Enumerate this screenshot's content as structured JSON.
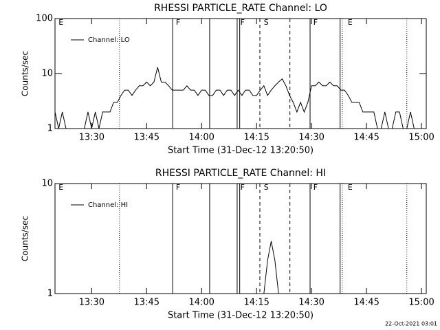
{
  "chart_data": [
    {
      "type": "line",
      "title": "RHESSI PARTICLE_RATE Channel: LO",
      "xlabel": "Start Time (31-Dec-12 13:20:50)",
      "ylabel": "Counts/sec",
      "log_y": true,
      "xlim": [
        800,
        901.3
      ],
      "ylim": [
        1,
        100
      ],
      "yticks": [
        1,
        10,
        100
      ],
      "xticks": [
        {
          "value": 810,
          "label": "13:30"
        },
        {
          "value": 825,
          "label": "13:45"
        },
        {
          "value": 840,
          "label": "14:00"
        },
        {
          "value": 855,
          "label": "14:15"
        },
        {
          "value": 870,
          "label": "14:30"
        },
        {
          "value": 885,
          "label": "14:45"
        },
        {
          "value": 900,
          "label": "15:00"
        }
      ],
      "markers": [
        {
          "x": 817.6,
          "style": "dotted"
        },
        {
          "x": 832.1,
          "style": "solid"
        },
        {
          "x": 842.2,
          "style": "solid"
        },
        {
          "x": 849.7,
          "style": "solid"
        },
        {
          "x": 850.4,
          "style": "solid"
        },
        {
          "x": 855.9,
          "style": "dashed"
        },
        {
          "x": 864.1,
          "style": "dashed"
        },
        {
          "x": 869.6,
          "style": "solid"
        },
        {
          "x": 877.8,
          "style": "solid"
        },
        {
          "x": 878.4,
          "style": "dotted"
        },
        {
          "x": 896.0,
          "style": "dotted"
        }
      ],
      "flags": [
        {
          "x": 800.8,
          "text": "E"
        },
        {
          "x": 832.8,
          "text": "F"
        },
        {
          "x": 850.4,
          "text": "F"
        },
        {
          "x": 856.8,
          "text": "S"
        },
        {
          "x": 870.3,
          "text": "F"
        },
        {
          "x": 879.7,
          "text": "E"
        }
      ],
      "x": [
        800,
        801,
        802,
        803,
        804,
        805,
        806,
        807,
        808,
        809,
        810,
        811,
        812,
        813,
        814,
        815,
        816,
        817,
        818,
        819,
        820,
        821,
        822,
        823,
        824,
        825,
        826,
        827,
        828,
        829,
        830,
        831,
        832,
        833,
        834,
        835,
        836,
        837,
        838,
        839,
        840,
        841,
        842,
        843,
        844,
        845,
        846,
        847,
        848,
        849,
        850,
        851,
        852,
        853,
        854,
        855,
        856,
        857,
        858,
        859,
        860,
        861,
        862,
        863,
        864,
        865,
        866,
        867,
        868,
        869,
        870,
        871,
        872,
        873,
        874,
        875,
        876,
        877,
        878,
        879,
        880,
        881,
        882,
        883,
        884,
        885,
        886,
        887,
        888,
        889,
        890,
        891,
        892,
        893,
        894,
        895,
        896,
        897,
        898,
        899,
        900
      ],
      "series": [
        {
          "name": "Channel: LO",
          "color": "#000000",
          "values": [
            2,
            1,
            2,
            1,
            1,
            1,
            1,
            1,
            1,
            2,
            1,
            2,
            1,
            2,
            2,
            2,
            3,
            3,
            4,
            5,
            5,
            4,
            5,
            6,
            6,
            7,
            6,
            7,
            13,
            7,
            7,
            6,
            5,
            5,
            5,
            5,
            6,
            5,
            5,
            4,
            5,
            5,
            4,
            4,
            5,
            5,
            4,
            5,
            5,
            4,
            5,
            4,
            5,
            5,
            4,
            4,
            5,
            6,
            4,
            5,
            6,
            7,
            8,
            6,
            4,
            3,
            2,
            3,
            2,
            3,
            6,
            6,
            7,
            6,
            6,
            7,
            6,
            6,
            5,
            5,
            4,
            3,
            3,
            3,
            2,
            2,
            2,
            2,
            1,
            1,
            2,
            1,
            1,
            2,
            2,
            1,
            1,
            2,
            1,
            1,
            1
          ]
        }
      ]
    },
    {
      "type": "line",
      "title": "RHESSI PARTICLE_RATE Channel: HI",
      "xlabel": "Start Time (31-Dec-12 13:20:50)",
      "ylabel": "Counts/sec",
      "log_y": true,
      "xlim": [
        800,
        901.3
      ],
      "ylim": [
        1,
        10
      ],
      "yticks": [
        1,
        10
      ],
      "xticks": [
        {
          "value": 810,
          "label": "13:30"
        },
        {
          "value": 825,
          "label": "13:45"
        },
        {
          "value": 840,
          "label": "14:00"
        },
        {
          "value": 855,
          "label": "14:15"
        },
        {
          "value": 870,
          "label": "14:30"
        },
        {
          "value": 885,
          "label": "14:45"
        },
        {
          "value": 900,
          "label": "15:00"
        }
      ],
      "markers": [
        {
          "x": 817.6,
          "style": "dotted"
        },
        {
          "x": 832.1,
          "style": "solid"
        },
        {
          "x": 842.2,
          "style": "solid"
        },
        {
          "x": 849.7,
          "style": "solid"
        },
        {
          "x": 850.4,
          "style": "solid"
        },
        {
          "x": 855.9,
          "style": "dashed"
        },
        {
          "x": 864.1,
          "style": "dashed"
        },
        {
          "x": 869.6,
          "style": "solid"
        },
        {
          "x": 877.8,
          "style": "solid"
        },
        {
          "x": 878.4,
          "style": "dotted"
        },
        {
          "x": 896.0,
          "style": "dotted"
        }
      ],
      "flags": [
        {
          "x": 800.8,
          "text": "E"
        },
        {
          "x": 832.8,
          "text": "F"
        },
        {
          "x": 850.4,
          "text": "F"
        },
        {
          "x": 856.8,
          "text": "S"
        },
        {
          "x": 870.3,
          "text": "F"
        },
        {
          "x": 879.7,
          "text": "E"
        }
      ],
      "x": [
        850,
        851,
        852,
        853,
        854,
        855,
        856,
        857,
        858,
        859,
        860,
        861,
        862,
        863,
        864,
        865
      ],
      "series": [
        {
          "name": "Channel: HI",
          "color": "#000000",
          "values": [
            1,
            1,
            1,
            1,
            1,
            1,
            1,
            1,
            2,
            3,
            2,
            1,
            1,
            1,
            1,
            1
          ]
        }
      ]
    }
  ],
  "footer": "22-Oct-2021 03:01"
}
